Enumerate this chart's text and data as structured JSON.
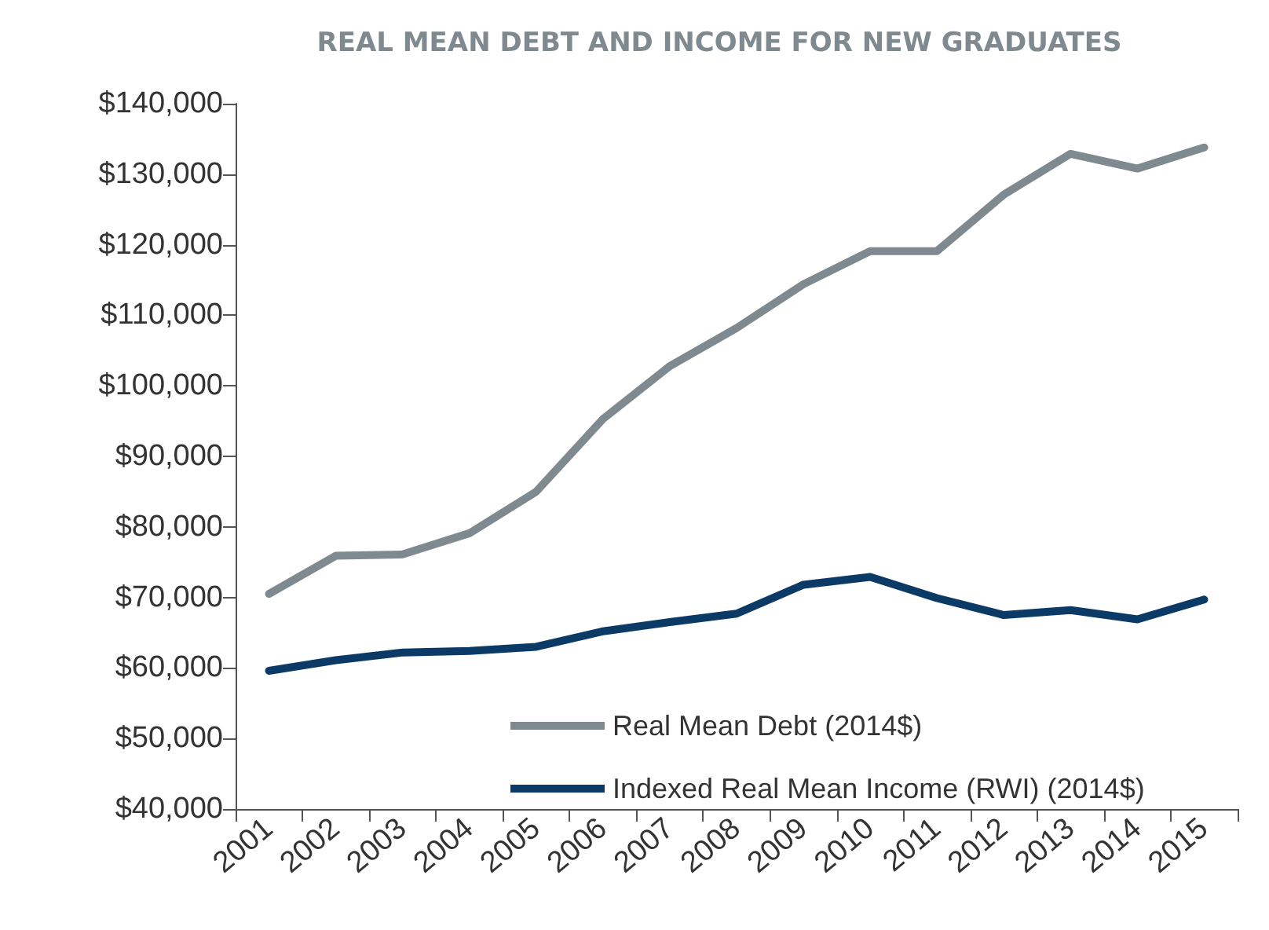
{
  "chart_data": {
    "type": "line",
    "title": "REAL MEAN DEBT AND INCOME FOR NEW GRADUATES",
    "categories": [
      "2001",
      "2002",
      "2003",
      "2004",
      "2005",
      "2006",
      "2007",
      "2008",
      "2009",
      "2010",
      "2011",
      "2012",
      "2013",
      "2014",
      "2015"
    ],
    "series": [
      {
        "name": "Real Mean Debt (2014$)",
        "color": "#7f8a90",
        "values": [
          70500,
          75900,
          76100,
          79100,
          85000,
          95300,
          102800,
          108200,
          114400,
          119100,
          119100,
          127100,
          132900,
          130800,
          133800
        ]
      },
      {
        "name": "Indexed Real Mean Income (RWI) (2014$)",
        "color": "#0b3a66",
        "values": [
          59600,
          61100,
          62200,
          62400,
          63000,
          65200,
          66500,
          67700,
          71800,
          72900,
          69900,
          67500,
          68200,
          66900,
          69700
        ]
      }
    ],
    "ylim": [
      40000,
      140000
    ],
    "yticks": [
      {
        "value": 40000,
        "label": "$40,000"
      },
      {
        "value": 50000,
        "label": "$50,000"
      },
      {
        "value": 60000,
        "label": "$60,000"
      },
      {
        "value": 70000,
        "label": "$70,000"
      },
      {
        "value": 80000,
        "label": "$80,000"
      },
      {
        "value": 90000,
        "label": "$90,000"
      },
      {
        "value": 100000,
        "label": "$100,000"
      },
      {
        "value": 110000,
        "label": "$110,000"
      },
      {
        "value": 120000,
        "label": "$120,000"
      },
      {
        "value": 130000,
        "label": "$130,000"
      },
      {
        "value": 140000,
        "label": "$140,000"
      }
    ],
    "grid": false,
    "legend": "bottom right",
    "marker": "none",
    "line_style": "solid"
  }
}
